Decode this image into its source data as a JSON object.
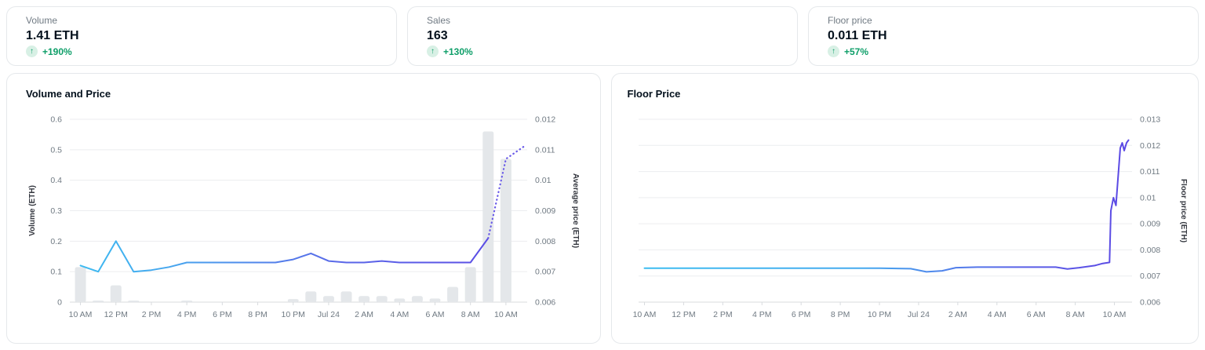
{
  "colors": {
    "card_border": "#e5e8eb",
    "text_primary": "#04111d",
    "text_secondary": "#707a83",
    "positive": "#0d9e68",
    "positive_badge_bg": "#d8f0e5",
    "bar_fill": "#e4e7ea",
    "gridline": "#ecedef",
    "axis_line": "#d8dbde",
    "line_cyan": "#3cbdf1",
    "line_purple": "#5b47e4"
  },
  "stats": [
    {
      "label": "Volume",
      "value": "1.41 ETH",
      "change": "+190%",
      "direction": "up",
      "up_arrow": "↑"
    },
    {
      "label": "Sales",
      "value": "163",
      "change": "+130%",
      "direction": "up",
      "up_arrow": "↑"
    },
    {
      "label": "Floor price",
      "value": "0.011 ETH",
      "change": "+57%",
      "direction": "up",
      "up_arrow": "↑"
    }
  ],
  "chart_data": [
    {
      "id": "volume-price",
      "type": "bar+line",
      "title": "Volume and Price",
      "grid": true,
      "legend": "none",
      "x": {
        "domain": [
          -0.6,
          25.2
        ],
        "tick_hours": [
          0,
          2,
          4,
          6,
          8,
          10,
          12,
          14,
          16,
          18,
          20,
          22,
          24
        ],
        "tick_labels": [
          "10 AM",
          "12 PM",
          "2 PM",
          "4 PM",
          "6 PM",
          "8 PM",
          "10 PM",
          "Jul 24",
          "2 AM",
          "4 AM",
          "6 AM",
          "8 AM",
          "10 AM"
        ]
      },
      "left_axis": {
        "title": "Volume (ETH)",
        "min": 0,
        "max": 0.6,
        "tick_values": [
          0,
          0.1,
          0.2,
          0.3,
          0.4,
          0.5,
          0.6
        ],
        "tick_labels": [
          "0",
          "0.1",
          "0.2",
          "0.3",
          "0.4",
          "0.5",
          "0.6"
        ]
      },
      "right_axis": {
        "title": "Average price (ETH)",
        "min": 0.006,
        "max": 0.012,
        "tick_values": [
          0.006,
          0.007,
          0.008,
          0.009,
          0.01,
          0.011,
          0.012
        ],
        "tick_labels": [
          "0.006",
          "0.007",
          "0.008",
          "0.009",
          "0.01",
          "0.011",
          "0.012"
        ]
      },
      "bars": {
        "name": "Volume (ETH)",
        "axis": "left",
        "hours": [
          0,
          1,
          2,
          3,
          4,
          5,
          6,
          7,
          8,
          9,
          10,
          11,
          12,
          13,
          14,
          15,
          16,
          17,
          18,
          19,
          20,
          21,
          22,
          23,
          24
        ],
        "values": [
          0.115,
          0.005,
          0.055,
          0.005,
          0,
          0,
          0.005,
          0,
          0,
          0,
          0,
          0,
          0.01,
          0.035,
          0.02,
          0.035,
          0.02,
          0.02,
          0.012,
          0.02,
          0.012,
          0.05,
          0.115,
          0.56,
          0.47
        ]
      },
      "lines": [
        {
          "name": "Average price (ETH)",
          "axis": "right",
          "style": "solid",
          "gradient": [
            [
              "0%",
              "#3cbdf1"
            ],
            [
              "22%",
              "#47a6ee"
            ],
            [
              "60%",
              "#5a66e8"
            ],
            [
              "100%",
              "#5b47e4"
            ]
          ],
          "points": [
            [
              0,
              0.0072
            ],
            [
              1,
              0.007
            ],
            [
              2,
              0.008
            ],
            [
              3,
              0.007
            ],
            [
              4,
              0.00705
            ],
            [
              5,
              0.00715
            ],
            [
              6,
              0.0073
            ],
            [
              7,
              0.0073
            ],
            [
              8,
              0.0073
            ],
            [
              9,
              0.0073
            ],
            [
              10,
              0.0073
            ],
            [
              11,
              0.0073
            ],
            [
              12,
              0.0074
            ],
            [
              13,
              0.0076
            ],
            [
              14,
              0.00735
            ],
            [
              15,
              0.0073
            ],
            [
              16,
              0.0073
            ],
            [
              17,
              0.00735
            ],
            [
              18,
              0.0073
            ],
            [
              19,
              0.0073
            ],
            [
              20,
              0.0073
            ],
            [
              21,
              0.0073
            ],
            [
              22,
              0.0073
            ],
            [
              23,
              0.0081
            ]
          ]
        },
        {
          "name": "Average price projection (dotted)",
          "axis": "right",
          "style": "dotted",
          "color": "#695ae8",
          "points": [
            [
              23,
              0.0081
            ],
            [
              24,
              0.0107
            ],
            [
              25,
              0.0111
            ]
          ]
        }
      ]
    },
    {
      "id": "floor-price",
      "type": "line",
      "title": "Floor Price",
      "grid": true,
      "legend": "none",
      "x": {
        "domain": [
          -0.3,
          24.9
        ],
        "tick_hours": [
          0,
          2,
          4,
          6,
          8,
          10,
          12,
          14,
          16,
          18,
          20,
          22,
          24
        ],
        "tick_labels": [
          "10 AM",
          "12 PM",
          "2 PM",
          "4 PM",
          "6 PM",
          "8 PM",
          "10 PM",
          "Jul 24",
          "2 AM",
          "4 AM",
          "6 AM",
          "8 AM",
          "10 AM"
        ]
      },
      "right_axis": {
        "title": "Floor price (ETH)",
        "min": 0.006,
        "max": 0.013,
        "tick_values": [
          0.006,
          0.007,
          0.008,
          0.009,
          0.01,
          0.011,
          0.012,
          0.013
        ],
        "tick_labels": [
          "0.006",
          "0.007",
          "0.008",
          "0.009",
          "0.01",
          "0.011",
          "0.012",
          "0.013"
        ]
      },
      "lines": [
        {
          "name": "Floor price (ETH)",
          "axis": "right",
          "style": "solid",
          "gradient": [
            [
              "0%",
              "#3cbdf1"
            ],
            [
              "45%",
              "#45aaef"
            ],
            [
              "78%",
              "#5a5fe7"
            ],
            [
              "100%",
              "#5b47e4"
            ]
          ],
          "points": [
            [
              0,
              0.0073
            ],
            [
              4,
              0.0073
            ],
            [
              8,
              0.0073
            ],
            [
              12,
              0.0073
            ],
            [
              13.6,
              0.00728
            ],
            [
              14.4,
              0.00716
            ],
            [
              15.2,
              0.0072
            ],
            [
              15.9,
              0.00732
            ],
            [
              17,
              0.00734
            ],
            [
              19,
              0.00734
            ],
            [
              21,
              0.00734
            ],
            [
              21.6,
              0.00727
            ],
            [
              22.2,
              0.00732
            ],
            [
              23,
              0.0074
            ],
            [
              23.4,
              0.00748
            ],
            [
              23.75,
              0.00752
            ],
            [
              23.82,
              0.0095
            ],
            [
              23.95,
              0.01
            ],
            [
              24.08,
              0.0097
            ],
            [
              24.3,
              0.0119
            ],
            [
              24.4,
              0.0121
            ],
            [
              24.5,
              0.0118
            ],
            [
              24.62,
              0.0121
            ],
            [
              24.72,
              0.0122
            ]
          ]
        }
      ]
    }
  ]
}
